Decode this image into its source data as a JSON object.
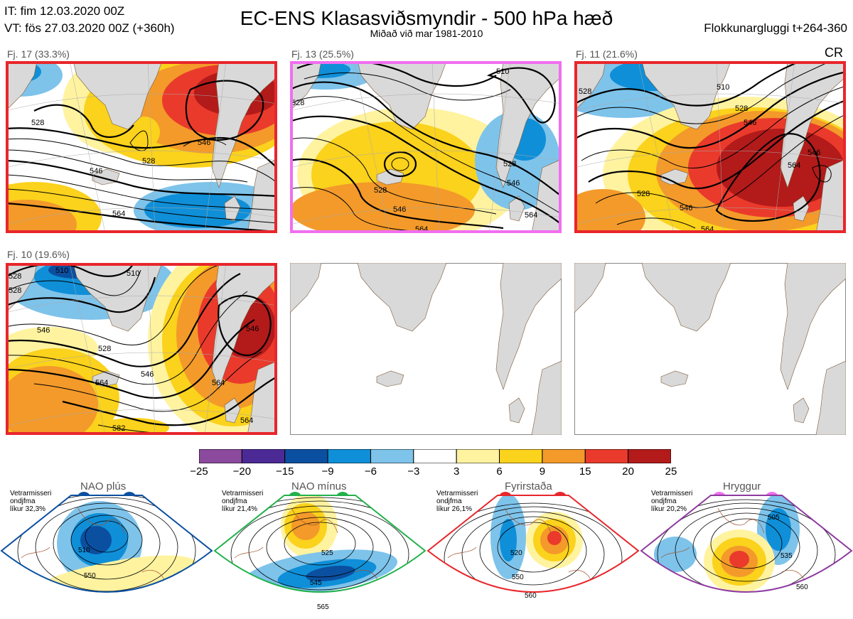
{
  "header": {
    "it_line": "IT: fim 12.03.2020 00Z",
    "vt_line": "VT: fös 27.03.2020 00Z  (+360h)",
    "title": "EC-ENS Klasasviðsmyndir - 500 hPa hæð",
    "subtitle": "Miðað við mar 1981-2010",
    "window_label": "Flokkunargluggi t+264-360",
    "cr_label": "CR"
  },
  "clusters": [
    {
      "label": "Fj. 17 (33.3%)",
      "frame_color": "#e8262b",
      "contours": [
        "528",
        "546",
        "528",
        "546",
        "564"
      ]
    },
    {
      "label": "Fj. 13 (25.5%)",
      "frame_color": "#f06ef0",
      "contours": [
        "528",
        "510",
        "528",
        "528",
        "546",
        "546",
        "564",
        "564"
      ]
    },
    {
      "label": "Fj. 11 (21.6%)",
      "frame_color": "#e8262b",
      "contours": [
        "528",
        "510",
        "528",
        "546",
        "564",
        "546",
        "528",
        "546",
        "564"
      ]
    },
    {
      "label": "Fj. 10 (19.6%)",
      "frame_color": "#e8262b",
      "contours": [
        "528",
        "510",
        "510",
        "528",
        "546",
        "528",
        "546",
        "564",
        "546",
        "564",
        "564",
        "582"
      ]
    }
  ],
  "colorbar": {
    "colors": [
      "#8b4a9e",
      "#4c2a96",
      "#0b4fa0",
      "#0f8fd8",
      "#7ec3ea",
      "#ffffff",
      "#fff3a0",
      "#fbd21c",
      "#f39a2a",
      "#ea3a2c",
      "#b31a1a"
    ],
    "ticks": [
      "−25",
      "−20",
      "−15",
      "−9",
      "−6",
      "−3",
      "3",
      "6",
      "9",
      "15",
      "20",
      "25"
    ]
  },
  "regimes": [
    {
      "name": "NAO plús",
      "meta_lines": [
        "Vetrarmisseri",
        "ondjfma",
        "líkur 32,3%"
      ],
      "color": "#0b4fa0",
      "contours": [
        "510",
        "550"
      ]
    },
    {
      "name": "NAO mínus",
      "meta_lines": [
        "Vetrarmisseri",
        "ondjfma",
        "líkur 21,4%"
      ],
      "color": "#22b14c",
      "contours": [
        "525",
        "545",
        "565"
      ]
    },
    {
      "name": "Fyrirstaða",
      "meta_lines": [
        "Vetrarmisseri",
        "ondjfma",
        "líkur 26,1%"
      ],
      "color": "#e8262b",
      "contours": [
        "520",
        "550",
        "560"
      ]
    },
    {
      "name": "Hryggur",
      "meta_lines": [
        "Vetrarmisseri",
        "ondjfma",
        "líkur 20,2%"
      ],
      "color": "#f06ef0",
      "contours": [
        "505",
        "535",
        "560"
      ]
    }
  ]
}
